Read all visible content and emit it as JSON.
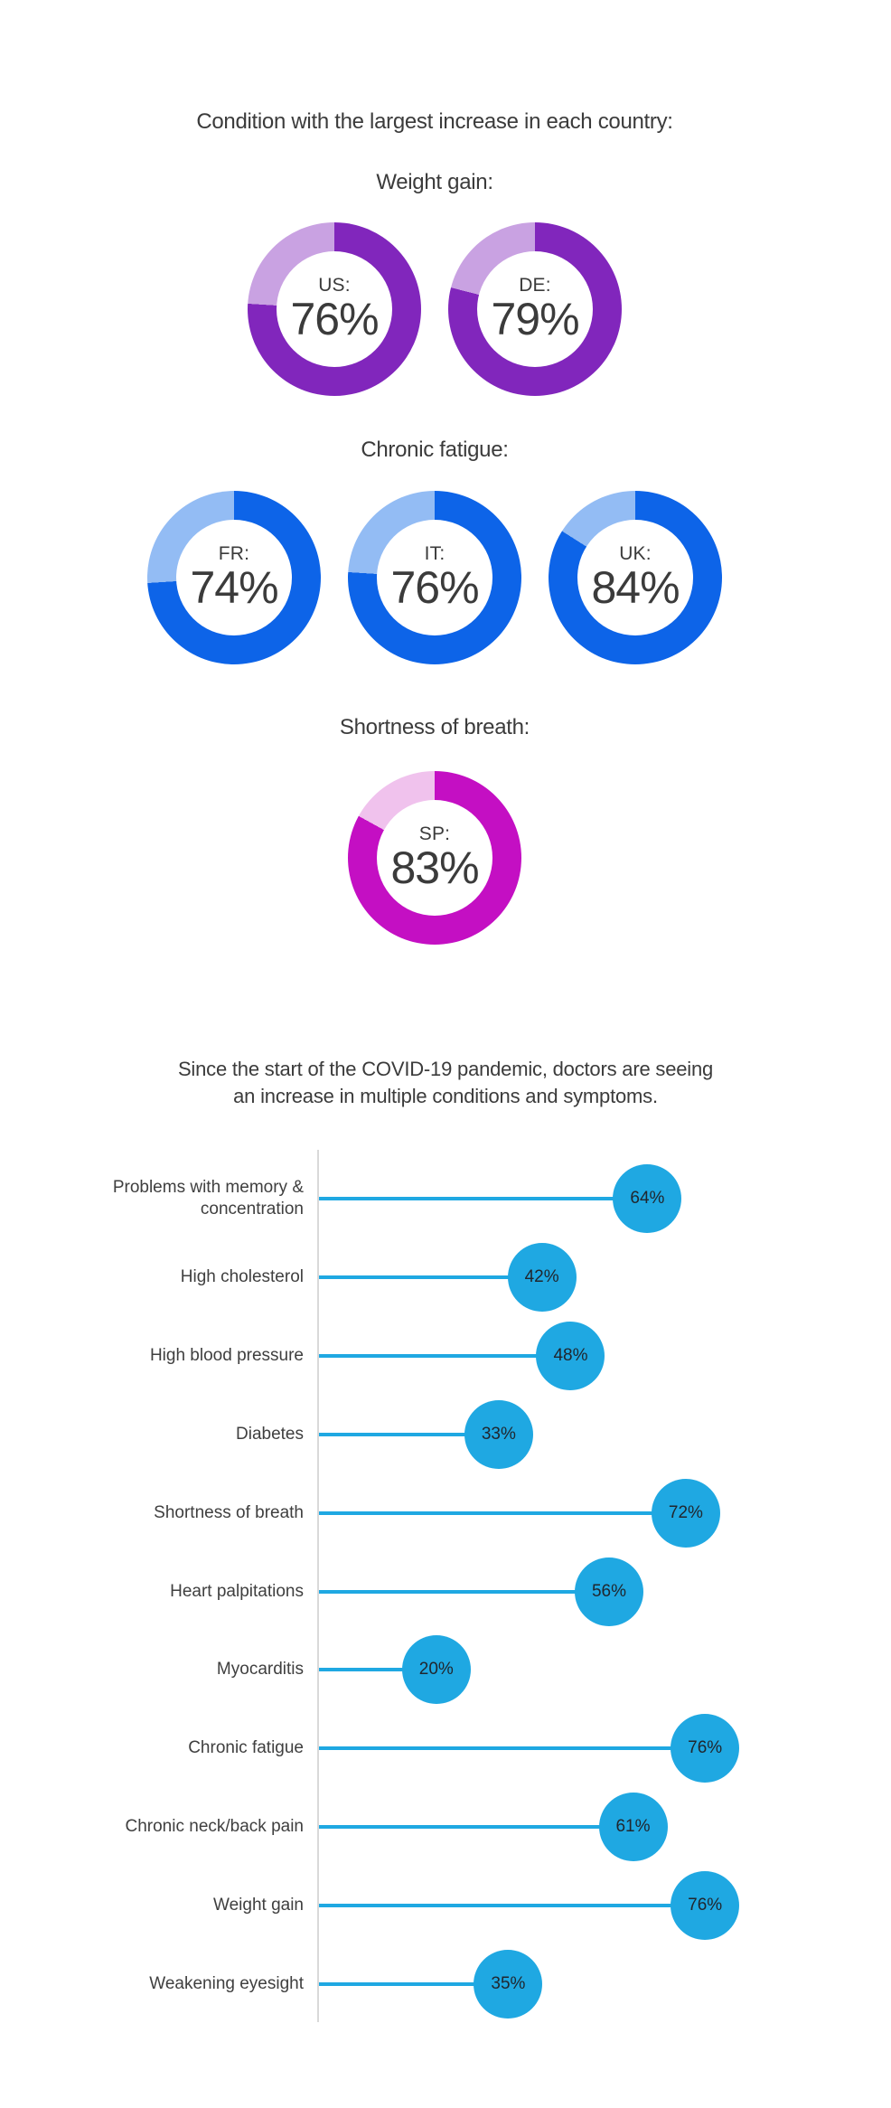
{
  "colors": {
    "background": "#ffffff",
    "text": "#3b3b3b",
    "axis": "#d9d9d9",
    "purple_filled": "#8126bc",
    "purple_remainder": "#c9a2e2",
    "blue_filled": "#0d64e8",
    "blue_remainder": "#93bcf4",
    "magenta_filled": "#c40fc3",
    "magenta_remainder": "#f0c2ed",
    "cyan_accent": "#1fa8e2"
  },
  "chart_data": [
    {
      "type": "donut-set",
      "title": "Condition with the largest increase in each country:",
      "groups": [
        {
          "condition": "Weight gain:",
          "color_filled": "#8126bc",
          "color_remainder": "#c9a2e2",
          "donuts": [
            {
              "label": "US:",
              "value": 76,
              "value_label": "76%"
            },
            {
              "label": "DE:",
              "value": 79,
              "value_label": "79%"
            }
          ]
        },
        {
          "condition": "Chronic fatigue:",
          "color_filled": "#0d64e8",
          "color_remainder": "#93bcf4",
          "donuts": [
            {
              "label": "FR:",
              "value": 74,
              "value_label": "74%"
            },
            {
              "label": "IT:",
              "value": 76,
              "value_label": "76%"
            },
            {
              "label": "UK:",
              "value": 84,
              "value_label": "84%"
            }
          ]
        },
        {
          "condition": "Shortness of breath:",
          "color_filled": "#c40fc3",
          "color_remainder": "#f0c2ed",
          "donuts": [
            {
              "label": "SP:",
              "value": 83,
              "value_label": "83%"
            }
          ]
        }
      ]
    },
    {
      "type": "lollipop",
      "orientation": "horizontal",
      "title_lines": [
        "Since the start of the COVID-19 pandemic, doctors are seeing",
        "an increase in multiple conditions and symptoms."
      ],
      "categories": [
        "Problems with memory & concentration",
        "High cholesterol",
        "High blood pressure",
        "Diabetes",
        "Shortness of breath",
        "Heart palpitations",
        "Myocarditis",
        "Chronic fatigue",
        "Chronic neck/back pain",
        "Weight gain",
        "Weakening eyesight"
      ],
      "values": [
        64,
        42,
        48,
        33,
        72,
        56,
        20,
        76,
        61,
        76,
        35
      ],
      "value_labels": [
        "64%",
        "42%",
        "48%",
        "33%",
        "72%",
        "56%",
        "20%",
        "76%",
        "61%",
        "76%",
        "35%"
      ],
      "unit": "%",
      "xlim": [
        0,
        100
      ],
      "grid": false,
      "legend": "none",
      "accent_color": "#1fa8e2",
      "axis_color": "#d9d9d9"
    }
  ]
}
